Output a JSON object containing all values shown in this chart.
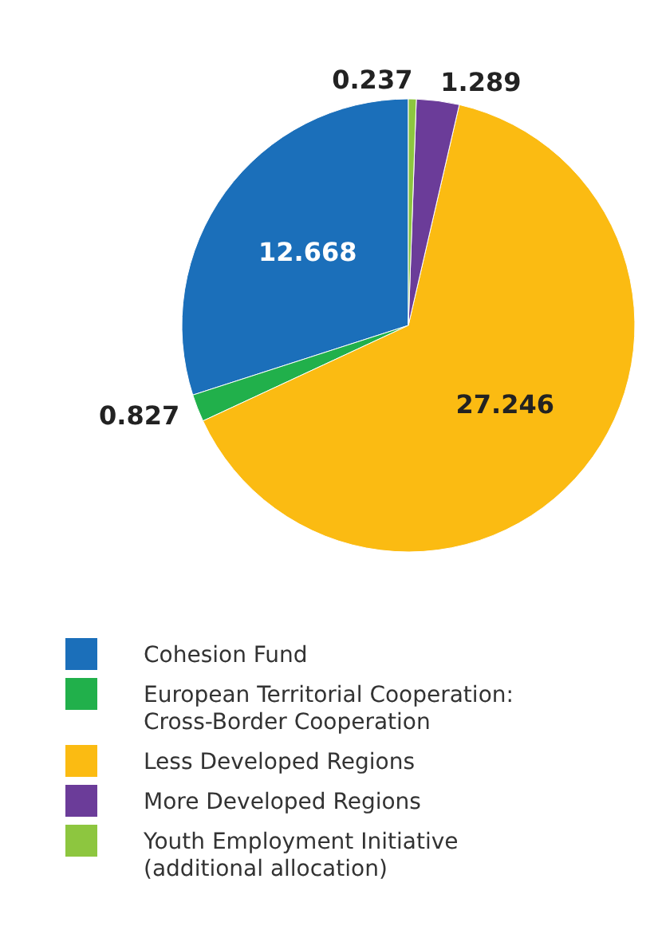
{
  "chart_data": {
    "type": "pie",
    "categories": [
      "Cohesion Fund",
      "European Territorial Cooperation: Cross-Border Cooperation",
      "Less Developed Regions",
      "More Developed Regions",
      "Youth Employment Initiative (additional allocation)"
    ],
    "values": [
      12.668,
      0.827,
      27.246,
      1.289,
      0.237
    ],
    "colors": [
      "#1b6fba",
      "#21b04b",
      "#fbbb12",
      "#6b3c99",
      "#8dc63f"
    ],
    "data_labels": true,
    "legend": "bottom"
  }
}
